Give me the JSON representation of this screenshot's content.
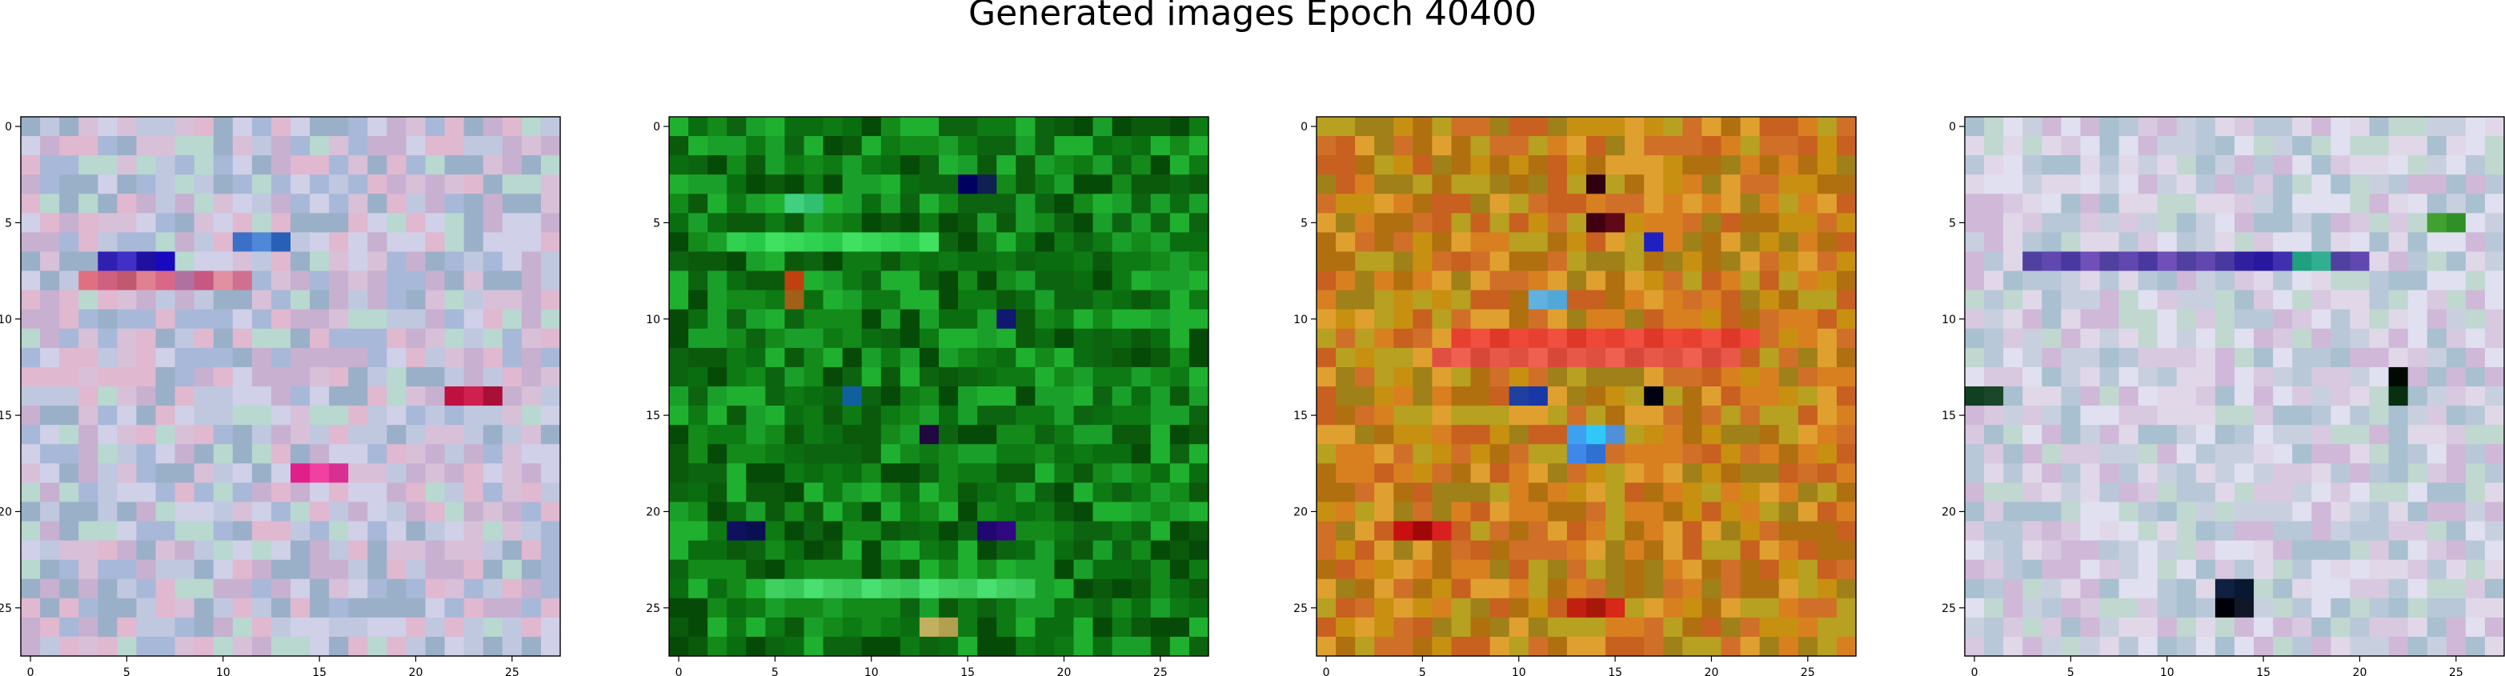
{
  "figure": {
    "title": "Generated images Epoch 40400"
  },
  "chart_data": [
    {
      "type": "heatmap",
      "title": "",
      "xlabel": "",
      "ylabel": "",
      "grid_size": 28,
      "xlim": [
        -0.5,
        27.5
      ],
      "ylim": [
        27.5,
        -0.5
      ],
      "x_ticks": [
        0,
        5,
        10,
        15,
        20,
        25
      ],
      "y_ticks": [
        0,
        5,
        10,
        15,
        20,
        25
      ],
      "grid": false,
      "palette": [
        "#a8b8d8",
        "#c0c8e0",
        "#d8c0d8",
        "#e0b8d0",
        "#b8d8d0",
        "#9ab0c8",
        "#d0d0e8",
        "#c8b0d0"
      ],
      "features": [
        {
          "row": 7,
          "cols": [
            4,
            5,
            6,
            7
          ],
          "colors": [
            "#3020b0",
            "#4030c8",
            "#2010a0",
            "#1808c0"
          ]
        },
        {
          "row": 8,
          "cols": [
            3,
            4,
            5,
            6,
            7,
            8,
            9,
            10,
            11
          ],
          "colors": [
            "#e07080",
            "#d06080",
            "#c05870",
            "#e08090",
            "#d86888",
            "#b070a0",
            "#c85880",
            "#e090a0",
            "#d07090"
          ]
        },
        {
          "row": 14,
          "cols": [
            22,
            23,
            24
          ],
          "colors": [
            "#c01040",
            "#d02050",
            "#a81038"
          ]
        },
        {
          "row": 18,
          "cols": [
            14,
            15,
            16
          ],
          "colors": [
            "#e0208a",
            "#f040a0",
            "#d83090"
          ]
        },
        {
          "row": 6,
          "cols": [
            11,
            12,
            13
          ],
          "colors": [
            "#3a70c8",
            "#5088d8",
            "#2860b8"
          ]
        }
      ]
    },
    {
      "type": "heatmap",
      "title": "",
      "xlabel": "",
      "ylabel": "",
      "grid_size": 28,
      "xlim": [
        -0.5,
        27.5
      ],
      "ylim": [
        27.5,
        -0.5
      ],
      "x_ticks": [
        0,
        5,
        10,
        15,
        20,
        25
      ],
      "y_ticks": [
        0,
        5,
        10,
        15,
        20,
        25
      ],
      "grid": false,
      "palette": [
        "#0a6e10",
        "#138a1a",
        "#0b5a0c",
        "#1aa02a",
        "#0e7a14",
        "#064a08",
        "#20b030",
        "#0c6410"
      ],
      "features": [
        {
          "row": 3,
          "cols": [
            15,
            16
          ],
          "colors": [
            "#000060",
            "#102050"
          ]
        },
        {
          "row": 4,
          "cols": [
            6,
            7
          ],
          "colors": [
            "#40d080",
            "#30c070"
          ]
        },
        {
          "row": 6,
          "cols": [
            3,
            4,
            5,
            6,
            7,
            8,
            9,
            10,
            11,
            12,
            13
          ],
          "colors": [
            "#30d050",
            "#28c848",
            "#40e060",
            "#38d858",
            "#30d050",
            "#28c848",
            "#40e060",
            "#38d858",
            "#30d050",
            "#28c848",
            "#40e060"
          ]
        },
        {
          "row": 8,
          "cols": [
            6
          ],
          "colors": [
            "#c04010"
          ]
        },
        {
          "row": 9,
          "cols": [
            6
          ],
          "colors": [
            "#a06018"
          ]
        },
        {
          "row": 10,
          "cols": [
            17
          ],
          "colors": [
            "#101870"
          ]
        },
        {
          "row": 14,
          "cols": [
            9
          ],
          "colors": [
            "#1060a0"
          ]
        },
        {
          "row": 16,
          "cols": [
            13
          ],
          "colors": [
            "#200840"
          ]
        },
        {
          "row": 21,
          "cols": [
            3,
            4,
            16,
            17
          ],
          "colors": [
            "#101060",
            "#081050",
            "#200870",
            "#300880"
          ]
        },
        {
          "row": 24,
          "cols": [
            5,
            6,
            7,
            8,
            9,
            10,
            11,
            12,
            13,
            14,
            15,
            16,
            17,
            18
          ],
          "colors": [
            "#40d060",
            "#38c858",
            "#48e070",
            "#40d060",
            "#38c858",
            "#48e070",
            "#40d060",
            "#38c858",
            "#48e070",
            "#40d060",
            "#38c858",
            "#48e070",
            "#40d060",
            "#38c858"
          ]
        },
        {
          "row": 26,
          "cols": [
            13,
            14
          ],
          "colors": [
            "#c0b060",
            "#b0a050"
          ]
        }
      ]
    },
    {
      "type": "heatmap",
      "title": "",
      "xlabel": "",
      "ylabel": "",
      "grid_size": 28,
      "xlim": [
        -0.5,
        27.5
      ],
      "ylim": [
        27.5,
        -0.5
      ],
      "x_ticks": [
        0,
        5,
        10,
        15,
        20,
        25
      ],
      "y_ticks": [
        0,
        5,
        10,
        15,
        20,
        25
      ],
      "grid": false,
      "palette": [
        "#c89010",
        "#d88020",
        "#b07010",
        "#e0a030",
        "#a08018",
        "#c86020",
        "#b8a020",
        "#d07028"
      ],
      "features": [
        {
          "row": 3,
          "cols": [
            14
          ],
          "colors": [
            "#300010"
          ]
        },
        {
          "row": 5,
          "cols": [
            14,
            15
          ],
          "colors": [
            "#400010",
            "#600818"
          ]
        },
        {
          "row": 6,
          "cols": [
            17
          ],
          "colors": [
            "#2020c0"
          ]
        },
        {
          "row": 9,
          "cols": [
            11,
            12
          ],
          "colors": [
            "#60b0e0",
            "#50a8d8"
          ]
        },
        {
          "row": 11,
          "cols": [
            7,
            8,
            9,
            10,
            11,
            12,
            13,
            14,
            15,
            16,
            17,
            18,
            19,
            20,
            21,
            22
          ],
          "colors": [
            "#e84030",
            "#f05040",
            "#e03828",
            "#f04838",
            "#e84030",
            "#f05040",
            "#e03828",
            "#f04838",
            "#e84030",
            "#f05040",
            "#e03828",
            "#f04838",
            "#e84030",
            "#f05040",
            "#e03828",
            "#f04838"
          ]
        },
        {
          "row": 12,
          "cols": [
            6,
            7,
            8,
            9,
            10,
            11,
            12,
            13,
            14,
            15,
            16,
            17,
            18,
            19,
            20,
            21
          ],
          "colors": [
            "#e05040",
            "#f06050",
            "#d84838",
            "#e85848",
            "#e05040",
            "#f06050",
            "#d84838",
            "#e85848",
            "#e05040",
            "#f06050",
            "#d84838",
            "#e85848",
            "#e05040",
            "#f06050",
            "#d84838",
            "#e85848"
          ]
        },
        {
          "row": 14,
          "cols": [
            10,
            11,
            17
          ],
          "colors": [
            "#2040a0",
            "#1838a8",
            "#000010"
          ]
        },
        {
          "row": 16,
          "cols": [
            13,
            14,
            15
          ],
          "colors": [
            "#40a0f0",
            "#30c8f8",
            "#5090d8"
          ]
        },
        {
          "row": 17,
          "cols": [
            13,
            14
          ],
          "colors": [
            "#4088e8",
            "#3070d0"
          ]
        },
        {
          "row": 21,
          "cols": [
            4,
            5,
            6
          ],
          "colors": [
            "#c81010",
            "#a00808",
            "#d82020"
          ]
        },
        {
          "row": 25,
          "cols": [
            13,
            14,
            15
          ],
          "colors": [
            "#c02010",
            "#a81808",
            "#d82818"
          ]
        }
      ]
    },
    {
      "type": "heatmap",
      "title": "",
      "xlabel": "",
      "ylabel": "",
      "grid_size": 28,
      "xlim": [
        -0.5,
        27.5
      ],
      "ylim": [
        27.5,
        -0.5
      ],
      "x_ticks": [
        0,
        5,
        10,
        15,
        20,
        25
      ],
      "y_ticks": [
        0,
        5,
        10,
        15,
        20,
        25
      ],
      "grid": false,
      "palette": [
        "#c8d0e0",
        "#d8c8e0",
        "#b8c8d8",
        "#e0d8e8",
        "#c0d8d0",
        "#d0b8d8",
        "#a8c0d0",
        "#e0e0f0"
      ],
      "features": [
        {
          "row": 7,
          "cols": [
            3,
            4,
            5,
            6,
            7,
            8,
            9,
            10,
            11,
            12,
            13,
            14,
            15,
            16,
            17,
            18,
            19,
            20
          ],
          "colors": [
            "#5040a0",
            "#6048b0",
            "#4838a0",
            "#7050b8",
            "#5040a0",
            "#6048b0",
            "#4838a0",
            "#7050b8",
            "#5040a0",
            "#6048b0",
            "#4838a0",
            "#3020a0",
            "#2818a0",
            "#4030b0",
            "#20a080",
            "#30b090",
            "#5040a0",
            "#6048b0"
          ]
        },
        {
          "row": 13,
          "cols": [
            22
          ],
          "colors": [
            "#000a00"
          ]
        },
        {
          "row": 14,
          "cols": [
            0,
            1,
            22
          ],
          "colors": [
            "#104020",
            "#184828",
            "#083010"
          ]
        },
        {
          "row": 24,
          "cols": [
            13,
            14
          ],
          "colors": [
            "#102040",
            "#081830"
          ]
        },
        {
          "row": 25,
          "cols": [
            13,
            14
          ],
          "colors": [
            "#000008",
            "#101828"
          ]
        },
        {
          "row": 5,
          "cols": [
            24,
            25
          ],
          "colors": [
            "#40a030",
            "#309028"
          ]
        }
      ]
    }
  ]
}
